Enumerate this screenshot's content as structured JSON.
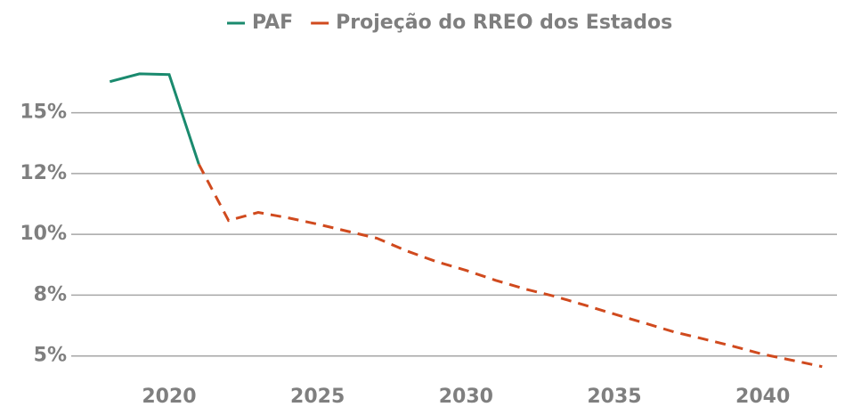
{
  "chart_data": {
    "type": "line",
    "x": [
      2018,
      2019,
      2020,
      2021,
      2022,
      2023,
      2024,
      2025,
      2026,
      2027,
      2028,
      2029,
      2030,
      2031,
      2032,
      2033,
      2034,
      2035,
      2036,
      2037,
      2038,
      2039,
      2040,
      2041,
      2042
    ],
    "series": [
      {
        "name": "PAF",
        "color": "#1a8a6e",
        "dash": false,
        "values": [
          16.28,
          16.6,
          16.57,
          12.88,
          null,
          null,
          null,
          null,
          null,
          null,
          null,
          null,
          null,
          null,
          null,
          null,
          null,
          null,
          null,
          null,
          null,
          null,
          null,
          null,
          null
        ]
      },
      {
        "name": "Projeção do RREO dos Estados",
        "color": "#d04a1e",
        "dash": true,
        "values": [
          null,
          null,
          null,
          12.88,
          10.57,
          10.9,
          10.68,
          10.42,
          10.13,
          9.84,
          9.32,
          8.88,
          8.52,
          8.11,
          7.75,
          7.45,
          7.09,
          6.72,
          6.36,
          5.99,
          5.7,
          5.4,
          5.07,
          4.82,
          4.56
        ]
      }
    ],
    "xlim": [
      2016.7,
      2042.5
    ],
    "xticks": [
      2020,
      2025,
      2030,
      2035,
      2040
    ],
    "ylim": [
      4,
      17
    ],
    "yticks": [
      {
        "value": 5,
        "label": "5%"
      },
      {
        "value": 7.5,
        "label": "8%"
      },
      {
        "value": 10,
        "label": "10%"
      },
      {
        "value": 12.5,
        "label": "12%"
      },
      {
        "value": 15,
        "label": "15%"
      }
    ],
    "grid": true,
    "legend": "top"
  }
}
